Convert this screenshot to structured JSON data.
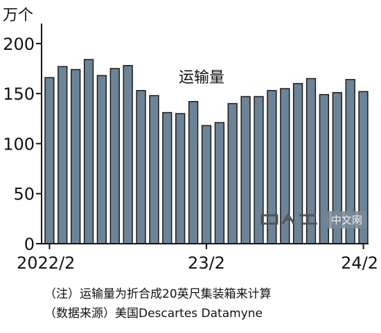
{
  "chart_data": {
    "type": "bar",
    "title": "",
    "series_label": "运输量",
    "unit_label": "万个",
    "xlabel": "",
    "ylabel": "",
    "ylim": [
      0,
      220
    ],
    "y_ticks": [
      0,
      50,
      100,
      150,
      200
    ],
    "x_tick_labels": [
      {
        "label": "2022/2",
        "index": 0
      },
      {
        "label": "23/2",
        "index": 12
      },
      {
        "label": "24/2",
        "index": 24
      }
    ],
    "categories": [
      "2022/2",
      "2022/3",
      "2022/4",
      "2022/5",
      "2022/6",
      "2022/7",
      "2022/8",
      "2022/9",
      "2022/10",
      "2022/11",
      "2022/12",
      "2023/1",
      "2023/2",
      "2023/3",
      "2023/4",
      "2023/5",
      "2023/6",
      "2023/7",
      "2023/8",
      "2023/9",
      "2023/10",
      "2023/11",
      "2023/12",
      "2024/1",
      "2024/2"
    ],
    "values": [
      166,
      177,
      174,
      184,
      168,
      175,
      178,
      153,
      148,
      131,
      130,
      142,
      118,
      121,
      140,
      147,
      147,
      153,
      155,
      160,
      165,
      149,
      151,
      164,
      152
    ],
    "bar_color": "#6d8497",
    "grid": false
  },
  "notes": {
    "line1": "（注）运输量为折合成20英尺集装箱来计算",
    "line2": "（数据来源）美国Descartes Datamyne"
  },
  "watermark": {
    "text": "中文网"
  }
}
